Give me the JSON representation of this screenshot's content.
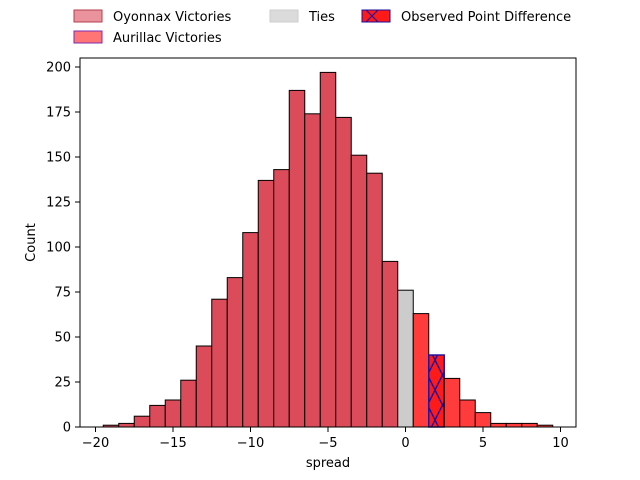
{
  "chart_data": {
    "type": "bar",
    "title": "",
    "xlabel": "spread",
    "ylabel": "Count",
    "xlim": [
      -21,
      11
    ],
    "ylim": [
      0,
      205
    ],
    "xticks": [
      -20,
      -15,
      -10,
      -5,
      0,
      5,
      10
    ],
    "yticks": [
      0,
      25,
      50,
      75,
      100,
      125,
      150,
      175,
      200
    ],
    "grid": false,
    "legend_position": "top",
    "colors": {
      "oyonnax": "#dc4b5a",
      "aurillac": "#ff3b3b",
      "ties": "#cccccc",
      "observed": "#ff1a1a",
      "observed_edge": "#1a0f9e",
      "bar_edge": "#000000"
    },
    "legend": [
      {
        "name": "Oyonnax Victories",
        "key": "oyonnax"
      },
      {
        "name": "Aurillac Victories",
        "key": "aurillac"
      },
      {
        "name": "Ties",
        "key": "ties"
      },
      {
        "name": "Observed Point Difference",
        "key": "observed"
      }
    ],
    "bin_width": 1,
    "bins": [
      {
        "x": -19,
        "value": 1,
        "group": "oyonnax"
      },
      {
        "x": -18,
        "value": 2,
        "group": "oyonnax"
      },
      {
        "x": -17,
        "value": 6,
        "group": "oyonnax"
      },
      {
        "x": -16,
        "value": 12,
        "group": "oyonnax"
      },
      {
        "x": -15,
        "value": 15,
        "group": "oyonnax"
      },
      {
        "x": -14,
        "value": 26,
        "group": "oyonnax"
      },
      {
        "x": -13,
        "value": 45,
        "group": "oyonnax"
      },
      {
        "x": -12,
        "value": 71,
        "group": "oyonnax"
      },
      {
        "x": -11,
        "value": 83,
        "group": "oyonnax"
      },
      {
        "x": -10,
        "value": 108,
        "group": "oyonnax"
      },
      {
        "x": -9,
        "value": 137,
        "group": "oyonnax"
      },
      {
        "x": -8,
        "value": 143,
        "group": "oyonnax"
      },
      {
        "x": -7,
        "value": 187,
        "group": "oyonnax"
      },
      {
        "x": -6,
        "value": 174,
        "group": "oyonnax"
      },
      {
        "x": -5,
        "value": 197,
        "group": "oyonnax"
      },
      {
        "x": -4,
        "value": 172,
        "group": "oyonnax"
      },
      {
        "x": -3,
        "value": 151,
        "group": "oyonnax"
      },
      {
        "x": -2,
        "value": 141,
        "group": "oyonnax"
      },
      {
        "x": -1,
        "value": 92,
        "group": "oyonnax"
      },
      {
        "x": 0,
        "value": 76,
        "group": "ties"
      },
      {
        "x": 1,
        "value": 63,
        "group": "aurillac"
      },
      {
        "x": 2,
        "value": 40,
        "group": "observed"
      },
      {
        "x": 3,
        "value": 27,
        "group": "aurillac"
      },
      {
        "x": 4,
        "value": 15,
        "group": "aurillac"
      },
      {
        "x": 5,
        "value": 8,
        "group": "aurillac"
      },
      {
        "x": 6,
        "value": 2,
        "group": "aurillac"
      },
      {
        "x": 7,
        "value": 2,
        "group": "aurillac"
      },
      {
        "x": 8,
        "value": 2,
        "group": "aurillac"
      },
      {
        "x": 9,
        "value": 1,
        "group": "aurillac"
      }
    ]
  }
}
